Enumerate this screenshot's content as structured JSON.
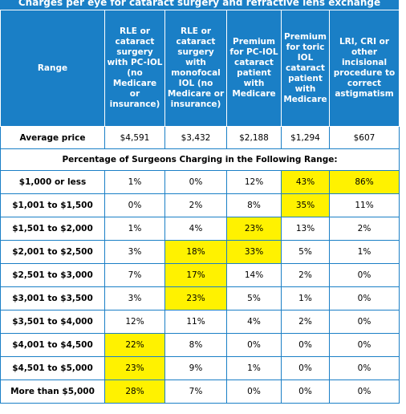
{
  "title": "Charges per eye for cataract surgery and refractive lens exchange",
  "table": {
    "header": [
      "Range",
      "RLE or cataract surgery with PC-IOL (no Medicare or insurance)",
      "RLE or cataract surgery with monofocal IOL (no Medicare or insurance)",
      "Premium for PC-IOL cataract patient with Medicare",
      "Premium for toric IOL cataract patient with Medicare",
      "LRI, CRI or other incisional procedure to correct astigmatism"
    ],
    "average_row": [
      "Average price",
      "$4,591",
      "$3,432",
      "$2,188",
      "$1,294",
      "$607"
    ],
    "section_label": "Percentage of Surgeons Charging in the Following Range:",
    "rows": [
      [
        "$1,000 or less",
        "1%",
        "0%",
        "12%",
        "43%",
        "86%"
      ],
      [
        "$1,001 to $1,500",
        "0%",
        "2%",
        "8%",
        "35%",
        "11%"
      ],
      [
        "$1,501 to $2,000",
        "1%",
        "4%",
        "23%",
        "13%",
        "2%"
      ],
      [
        "$2,001 to $2,500",
        "3%",
        "18%",
        "33%",
        "5%",
        "1%"
      ],
      [
        "$2,501 to $3,000",
        "7%",
        "17%",
        "14%",
        "2%",
        "0%"
      ],
      [
        "$3,001 to $3,500",
        "3%",
        "23%",
        "5%",
        "1%",
        "0%"
      ],
      [
        "$3,501 to $4,000",
        "12%",
        "11%",
        "4%",
        "2%",
        "0%"
      ],
      [
        "$4,001 to $4,500",
        "22%",
        "8%",
        "0%",
        "0%",
        "0%"
      ],
      [
        "$4,501 to $5,000",
        "23%",
        "9%",
        "1%",
        "0%",
        "0%"
      ],
      [
        "More than $5,000",
        "28%",
        "7%",
        "0%",
        "0%",
        "0%"
      ]
    ]
  }
}
